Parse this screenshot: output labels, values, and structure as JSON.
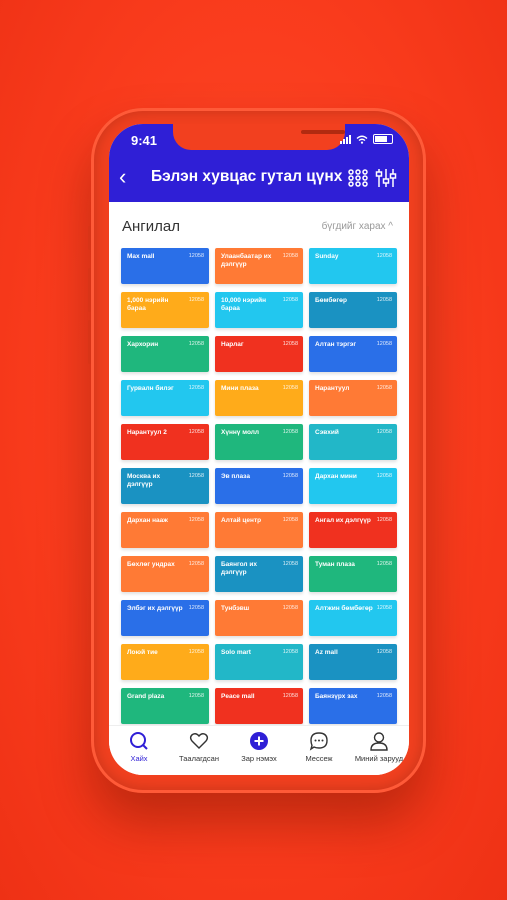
{
  "status_bar": {
    "time": "9:41"
  },
  "header": {
    "title": "Бэлэн хувцас гутал цүнх"
  },
  "section": {
    "title": "Ангилал",
    "see_all": "бүгдийг харах"
  },
  "tiles": [
    {
      "name": "Max mall",
      "count": "12058",
      "color": "#2a6fe8"
    },
    {
      "name": "Улаанбаатар их дэлгүүр",
      "count": "12058",
      "color": "#ff7a35"
    },
    {
      "name": "Sunday",
      "count": "12058",
      "color": "#22c7ef"
    },
    {
      "name": "1,000 нэрийн бараа",
      "count": "12058",
      "color": "#ffab1a"
    },
    {
      "name": "10,000 нэрийн бараа",
      "count": "12058",
      "color": "#22c7ef"
    },
    {
      "name": "Бөмбөгөр",
      "count": "12058",
      "color": "#1a92c2"
    },
    {
      "name": "Хархорин",
      "count": "12058",
      "color": "#1fb77d"
    },
    {
      "name": "Нарлаг",
      "count": "12058",
      "color": "#f0311f"
    },
    {
      "name": "Алтан тэргэг",
      "count": "12058",
      "color": "#2a6fe8"
    },
    {
      "name": "Гурвалн билэг",
      "count": "12058",
      "color": "#22c7ef"
    },
    {
      "name": "Мини плаза",
      "count": "12058",
      "color": "#ffab1a"
    },
    {
      "name": "Нарантуул",
      "count": "12058",
      "color": "#ff7a35"
    },
    {
      "name": "Нарантуул 2",
      "count": "12058",
      "color": "#f0311f"
    },
    {
      "name": "Хүннү молл",
      "count": "12058",
      "color": "#1fb77d"
    },
    {
      "name": "Сэвхий",
      "count": "12058",
      "color": "#22b7c8"
    },
    {
      "name": "Москва их дэлгүүр",
      "count": "12058",
      "color": "#1a92c2"
    },
    {
      "name": "Эв плаза",
      "count": "12058",
      "color": "#2a6fe8"
    },
    {
      "name": "Дархан мини",
      "count": "12058",
      "color": "#22c7ef"
    },
    {
      "name": "Дархан нааж",
      "count": "12058",
      "color": "#ff7a35"
    },
    {
      "name": "Алтай центр",
      "count": "12058",
      "color": "#ff7a35"
    },
    {
      "name": "Ангал их дэлгүүр",
      "count": "12058",
      "color": "#f0311f"
    },
    {
      "name": "Бөхлөг ундрах",
      "count": "12058",
      "color": "#ff7a35"
    },
    {
      "name": "Баянгол их дэлгүүр",
      "count": "12058",
      "color": "#1a92c2"
    },
    {
      "name": "Туман плаза",
      "count": "12058",
      "color": "#1fb77d"
    },
    {
      "name": "Элбэг их дэлгүүр",
      "count": "12058",
      "color": "#2a6fe8"
    },
    {
      "name": "Тунбэвш",
      "count": "12058",
      "color": "#ff7a35"
    },
    {
      "name": "Алтжин бөмбөгөр",
      "count": "12058",
      "color": "#22c7ef"
    },
    {
      "name": "Лоюй тие",
      "count": "12058",
      "color": "#ffab1a"
    },
    {
      "name": "Solo mart",
      "count": "12058",
      "color": "#22b7c8"
    },
    {
      "name": "Az mall",
      "count": "12058",
      "color": "#1a92c2"
    },
    {
      "name": "Grand plaza",
      "count": "12058",
      "color": "#1fb77d"
    },
    {
      "name": "Peace mall",
      "count": "12058",
      "color": "#f0311f"
    },
    {
      "name": "Баянзүрх зах",
      "count": "12058",
      "color": "#2a6fe8"
    }
  ],
  "nav": {
    "search": "Хайх",
    "favorites": "Таалагдсан",
    "add": "Зар нэмэх",
    "messages": "Мессеж",
    "my_ads": "Миний зарууд"
  },
  "colors": {
    "accent": "#2f1fd6",
    "background": "#f93b1c"
  }
}
